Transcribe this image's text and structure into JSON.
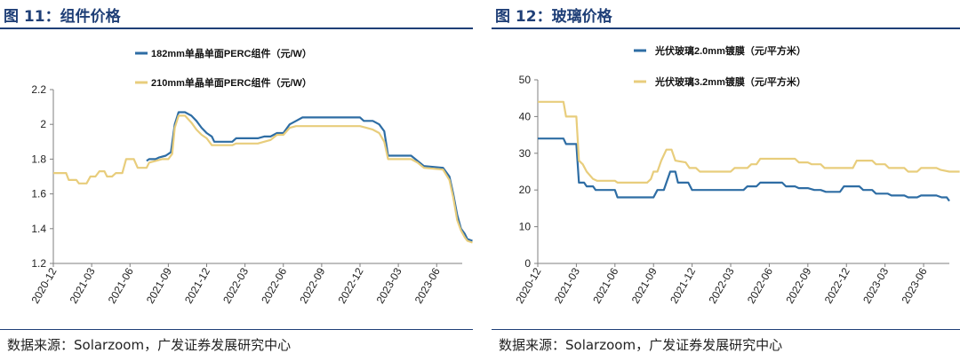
{
  "figures": [
    {
      "title": "图 11：组件价格",
      "source": "数据来源：Solarzoom，广发证券发展研究中心"
    },
    {
      "title": "图 12：玻璃价格",
      "source": "数据来源：Solarzoom，广发证券发展研究中心"
    }
  ],
  "colors": {
    "series_blue": "#2e6da4",
    "series_gold": "#e8cd7c",
    "title": "#1f3f77"
  },
  "chart_data": [
    {
      "type": "line",
      "title": "组件价格",
      "xlabel": "",
      "ylabel": "",
      "ylim": [
        1.2,
        2.2
      ],
      "yticks": [
        1.2,
        1.4,
        1.6,
        1.8,
        2.0,
        2.2
      ],
      "ytick_labels": [
        "1.2",
        "1.4",
        "1.6",
        "1.8",
        "2",
        "2.2"
      ],
      "x_tick_labels": [
        "2020-12",
        "2021-03",
        "2021-06",
        "2021-09",
        "2021-12",
        "2022-03",
        "2022-06",
        "2022-09",
        "2022-12",
        "2023-03",
        "2023-06"
      ],
      "x_tick_positions": [
        0,
        3,
        6,
        9,
        12,
        15,
        18,
        21,
        24,
        27,
        30
      ],
      "xlim": [
        0,
        32
      ],
      "legend": "top-center",
      "series": [
        {
          "name": "182mm单晶单面PERC组件（元/W）",
          "color": "#2e6da4",
          "points": [
            [
              7.3,
              1.79
            ],
            [
              7.5,
              1.8
            ],
            [
              8.0,
              1.8
            ],
            [
              8.3,
              1.81
            ],
            [
              8.8,
              1.82
            ],
            [
              9.2,
              1.84
            ],
            [
              9.5,
              2.0
            ],
            [
              9.8,
              2.07
            ],
            [
              10.3,
              2.07
            ],
            [
              10.8,
              2.05
            ],
            [
              11.2,
              2.02
            ],
            [
              11.6,
              1.98
            ],
            [
              12.0,
              1.95
            ],
            [
              12.4,
              1.93
            ],
            [
              12.6,
              1.9
            ],
            [
              13.2,
              1.9
            ],
            [
              14.0,
              1.9
            ],
            [
              14.3,
              1.92
            ],
            [
              16.0,
              1.92
            ],
            [
              16.5,
              1.93
            ],
            [
              17.0,
              1.93
            ],
            [
              17.5,
              1.95
            ],
            [
              18.0,
              1.95
            ],
            [
              18.5,
              2.0
            ],
            [
              19.0,
              2.02
            ],
            [
              19.5,
              2.04
            ],
            [
              20.0,
              2.04
            ],
            [
              24.0,
              2.04
            ],
            [
              24.3,
              2.02
            ],
            [
              25.0,
              2.02
            ],
            [
              25.5,
              2.0
            ],
            [
              25.9,
              1.96
            ],
            [
              26.2,
              1.82
            ],
            [
              27.0,
              1.82
            ],
            [
              28.0,
              1.82
            ],
            [
              28.5,
              1.79
            ],
            [
              29.0,
              1.76
            ],
            [
              30.5,
              1.75
            ],
            [
              31.0,
              1.7
            ],
            [
              31.3,
              1.6
            ],
            [
              31.6,
              1.48
            ],
            [
              31.9,
              1.4
            ],
            [
              32.2,
              1.37
            ],
            [
              32.4,
              1.34
            ],
            [
              32.8,
              1.33
            ]
          ]
        },
        {
          "name": "210mm单晶单面PERC组件（元/W）",
          "color": "#e8cd7c",
          "points": [
            [
              0,
              1.72
            ],
            [
              1.0,
              1.72
            ],
            [
              1.2,
              1.68
            ],
            [
              1.8,
              1.68
            ],
            [
              2.0,
              1.66
            ],
            [
              2.6,
              1.66
            ],
            [
              2.9,
              1.7
            ],
            [
              3.3,
              1.7
            ],
            [
              3.6,
              1.73
            ],
            [
              4.0,
              1.73
            ],
            [
              4.2,
              1.7
            ],
            [
              4.6,
              1.7
            ],
            [
              4.9,
              1.72
            ],
            [
              5.4,
              1.72
            ],
            [
              5.7,
              1.8
            ],
            [
              6.3,
              1.8
            ],
            [
              6.6,
              1.75
            ],
            [
              7.3,
              1.75
            ],
            [
              7.5,
              1.78
            ],
            [
              8.0,
              1.79
            ],
            [
              8.5,
              1.8
            ],
            [
              9.0,
              1.8
            ],
            [
              9.3,
              1.83
            ],
            [
              9.5,
              1.98
            ],
            [
              9.8,
              2.05
            ],
            [
              10.3,
              2.05
            ],
            [
              10.8,
              2.01
            ],
            [
              11.2,
              1.97
            ],
            [
              11.6,
              1.94
            ],
            [
              12.0,
              1.92
            ],
            [
              12.4,
              1.88
            ],
            [
              13.0,
              1.88
            ],
            [
              14.0,
              1.88
            ],
            [
              14.3,
              1.89
            ],
            [
              16.0,
              1.89
            ],
            [
              16.5,
              1.9
            ],
            [
              17.0,
              1.91
            ],
            [
              17.5,
              1.94
            ],
            [
              18.0,
              1.94
            ],
            [
              18.5,
              1.98
            ],
            [
              19.0,
              1.99
            ],
            [
              24.0,
              1.99
            ],
            [
              24.5,
              1.98
            ],
            [
              25.0,
              1.97
            ],
            [
              25.5,
              1.95
            ],
            [
              25.9,
              1.9
            ],
            [
              26.2,
              1.8
            ],
            [
              27.0,
              1.8
            ],
            [
              28.0,
              1.8
            ],
            [
              28.5,
              1.78
            ],
            [
              29.0,
              1.75
            ],
            [
              30.5,
              1.74
            ],
            [
              31.0,
              1.68
            ],
            [
              31.3,
              1.58
            ],
            [
              31.6,
              1.45
            ],
            [
              31.9,
              1.39
            ],
            [
              32.2,
              1.35
            ],
            [
              32.4,
              1.33
            ],
            [
              32.8,
              1.32
            ]
          ]
        }
      ]
    },
    {
      "type": "line",
      "title": "玻璃价格",
      "xlabel": "",
      "ylabel": "",
      "ylim": [
        0,
        50
      ],
      "yticks": [
        0,
        10,
        20,
        30,
        40,
        50
      ],
      "ytick_labels": [
        "0",
        "10",
        "20",
        "30",
        "40",
        "50"
      ],
      "x_tick_labels": [
        "2020-12",
        "2021-03",
        "2021-06",
        "2021-09",
        "2021-12",
        "2022-03",
        "2022-06",
        "2022-09",
        "2022-12",
        "2023-03",
        "2023-06"
      ],
      "x_tick_positions": [
        0,
        3,
        6,
        9,
        12,
        15,
        18,
        21,
        24,
        27,
        30
      ],
      "xlim": [
        0,
        32
      ],
      "legend": "top-center",
      "series": [
        {
          "name": "光伏玻璃2.0mm镀膜（元/平方米）",
          "color": "#2e6da4",
          "points": [
            [
              0,
              34
            ],
            [
              2.0,
              34
            ],
            [
              2.2,
              32.5
            ],
            [
              3.0,
              32.5
            ],
            [
              3.2,
              22
            ],
            [
              3.6,
              22
            ],
            [
              3.8,
              21
            ],
            [
              4.3,
              21
            ],
            [
              4.5,
              20
            ],
            [
              6.0,
              20
            ],
            [
              6.2,
              18
            ],
            [
              9.0,
              18
            ],
            [
              9.3,
              20
            ],
            [
              9.8,
              20
            ],
            [
              10.0,
              22
            ],
            [
              10.3,
              25
            ],
            [
              10.7,
              25
            ],
            [
              10.9,
              22
            ],
            [
              11.7,
              22
            ],
            [
              12.0,
              20
            ],
            [
              14.0,
              20
            ],
            [
              16.0,
              20
            ],
            [
              16.3,
              21
            ],
            [
              17.0,
              21
            ],
            [
              17.3,
              22
            ],
            [
              19.0,
              22
            ],
            [
              19.3,
              21
            ],
            [
              20.0,
              21
            ],
            [
              20.3,
              20.5
            ],
            [
              21.0,
              20.5
            ],
            [
              21.5,
              20
            ],
            [
              22.0,
              20
            ],
            [
              22.4,
              19.5
            ],
            [
              23.5,
              19.5
            ],
            [
              23.8,
              21
            ],
            [
              25.0,
              21
            ],
            [
              25.3,
              20
            ],
            [
              26.0,
              20
            ],
            [
              26.3,
              19
            ],
            [
              27.2,
              19
            ],
            [
              27.5,
              18.5
            ],
            [
              28.5,
              18.5
            ],
            [
              28.8,
              18
            ],
            [
              29.5,
              18
            ],
            [
              29.8,
              18.5
            ],
            [
              31.0,
              18.5
            ],
            [
              31.4,
              18
            ],
            [
              31.8,
              18
            ],
            [
              32.0,
              17
            ]
          ]
        },
        {
          "name": "光伏玻璃3.2mm镀膜（元/平方米）",
          "color": "#e8cd7c",
          "points": [
            [
              0,
              44
            ],
            [
              2.0,
              44
            ],
            [
              2.2,
              40
            ],
            [
              3.0,
              40
            ],
            [
              3.2,
              28
            ],
            [
              3.5,
              27
            ],
            [
              3.8,
              25
            ],
            [
              4.3,
              23
            ],
            [
              4.6,
              22.5
            ],
            [
              6.0,
              22.5
            ],
            [
              6.2,
              22
            ],
            [
              8.5,
              22
            ],
            [
              8.8,
              23
            ],
            [
              9.0,
              25
            ],
            [
              9.3,
              25
            ],
            [
              9.6,
              28
            ],
            [
              10.0,
              31
            ],
            [
              10.4,
              31
            ],
            [
              10.7,
              28
            ],
            [
              11.5,
              27.5
            ],
            [
              11.8,
              26
            ],
            [
              12.3,
              26
            ],
            [
              12.6,
              25
            ],
            [
              15.0,
              25
            ],
            [
              15.3,
              26
            ],
            [
              16.3,
              26
            ],
            [
              16.6,
              27
            ],
            [
              17.0,
              27
            ],
            [
              17.3,
              28.5
            ],
            [
              20.0,
              28.5
            ],
            [
              20.3,
              27.5
            ],
            [
              21.0,
              27.5
            ],
            [
              21.3,
              27
            ],
            [
              22.0,
              27
            ],
            [
              22.3,
              26
            ],
            [
              24.5,
              26
            ],
            [
              24.8,
              28
            ],
            [
              26.0,
              28
            ],
            [
              26.3,
              27
            ],
            [
              27.0,
              27
            ],
            [
              27.3,
              26
            ],
            [
              28.5,
              26
            ],
            [
              28.8,
              25
            ],
            [
              29.5,
              25
            ],
            [
              29.8,
              26
            ],
            [
              31.0,
              26
            ],
            [
              31.3,
              25.5
            ],
            [
              32.0,
              25
            ],
            [
              32.8,
              25
            ]
          ]
        }
      ]
    }
  ]
}
